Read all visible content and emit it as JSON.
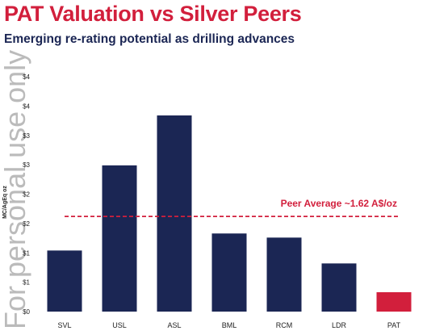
{
  "header": {
    "title": "PAT Valuation vs Silver Peers",
    "subtitle": "Emerging re-rating potential as drilling advances"
  },
  "watermark": "For personal use only",
  "colors": {
    "title": "#d21f3c",
    "subtitle": "#1b2654",
    "bar": "#1b2654",
    "highlight_bar": "#d21f3c",
    "average_line": "#d21f3c"
  },
  "chart_data": {
    "type": "bar",
    "categories": [
      "SVL",
      "USL",
      "ASL",
      "BML",
      "RCM",
      "LDR",
      "PAT"
    ],
    "values": [
      1.04,
      2.49,
      3.34,
      1.33,
      1.26,
      0.82,
      0.33
    ],
    "highlight_category": "PAT",
    "ylabel": "MC/AgEq oz",
    "ylim": [
      0,
      4
    ],
    "y_ticks": [
      0,
      0.5,
      1,
      1.5,
      2,
      2.5,
      3,
      3.5,
      4
    ],
    "y_tick_labels": [
      "$0",
      "$1",
      "$1",
      "$2",
      "$2",
      "$3",
      "$3",
      "$4",
      "$4"
    ],
    "reference_line": {
      "value": 1.62,
      "label": "Peer Average ~1.62 A$/oz",
      "style": "dashed"
    },
    "grid": false,
    "legend": "none"
  }
}
